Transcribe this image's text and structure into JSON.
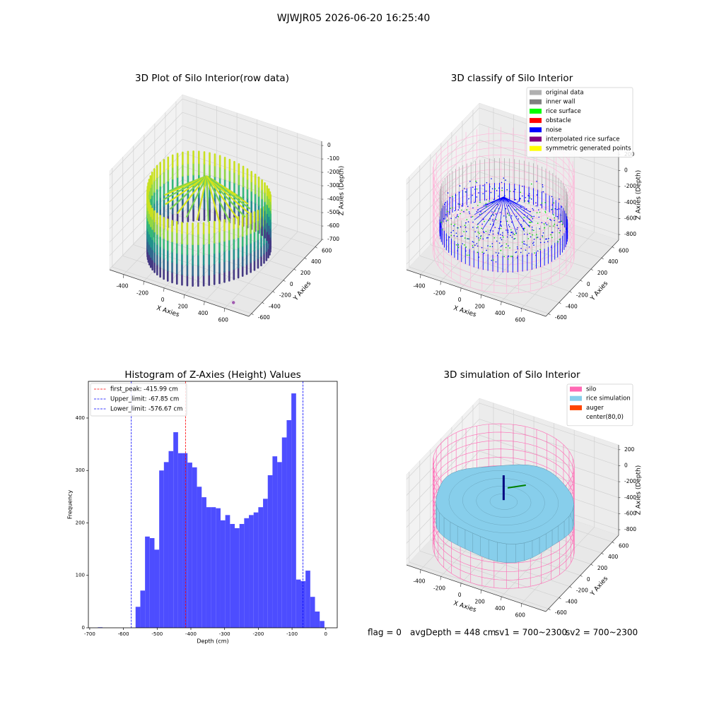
{
  "title": "WJWJR05 2026-06-20 16:25:40",
  "chart_data": [
    {
      "type": "scatter3d",
      "title": "3D Plot of Silo Interior(row data)",
      "xlabel": "X Axies",
      "ylabel": "Y Axies",
      "zlabel": "Z Axies (Depth)",
      "xlim": [
        -540,
        840
      ],
      "ylim": [
        -650,
        720
      ],
      "zlim": [
        -705,
        32
      ],
      "xticks": [
        -400,
        -200,
        0,
        200,
        400,
        600
      ],
      "yticks": [
        -600,
        -400,
        -200,
        0,
        200,
        400,
        600
      ],
      "zticks": [
        0,
        -100,
        -200,
        -300,
        -400,
        -500,
        -600,
        -700
      ]
    },
    {
      "type": "scatter3d",
      "title": "3D classify of Silo Interior",
      "xlabel": "X Axies",
      "ylabel": "Y Axies",
      "zlabel": "Z Axies (Depth)",
      "xlim": [
        -540,
        840
      ],
      "ylim": [
        -650,
        720
      ],
      "zlim": [
        -870,
        260
      ],
      "xticks": [
        -400,
        -200,
        0,
        200,
        400,
        600
      ],
      "yticks": [
        -600,
        -400,
        -200,
        0,
        200,
        400,
        600
      ],
      "zticks": [
        200,
        0,
        -200,
        -400,
        -600,
        -800
      ],
      "legend": [
        {
          "name": "original data",
          "color": "#b0b0b0"
        },
        {
          "name": "inner wall",
          "color": "#808080"
        },
        {
          "name": "rice surface",
          "color": "#00ff00"
        },
        {
          "name": "obstacle",
          "color": "#ff0000"
        },
        {
          "name": "noise",
          "color": "#0000ff"
        },
        {
          "name": "interpolated rice surface",
          "color": "#800080"
        },
        {
          "name": "symmetric generated points",
          "color": "#ffff00"
        }
      ]
    },
    {
      "type": "histogram",
      "title": "Histogram of Z-Axies (Height) Values",
      "xlabel": "Depth (cm)",
      "ylabel": "Frequency",
      "color": "#4d4dff",
      "bins": [
        -676,
        -662,
        -648,
        -634,
        -620,
        -606,
        -592,
        -578,
        -564,
        -550,
        -536,
        -522,
        -508,
        -494,
        -480,
        -466,
        -452,
        -438,
        -424,
        -410,
        -396,
        -382,
        -368,
        -354,
        -340,
        -326,
        -312,
        -298,
        -284,
        -270,
        -256,
        -242,
        -228,
        -214,
        -200,
        -186,
        -172,
        -158,
        -144,
        -130,
        -116,
        -102,
        -88,
        -74,
        -60,
        -46,
        -32,
        -18,
        -4
      ],
      "values": [
        1,
        0,
        0,
        0,
        0,
        0,
        0,
        0,
        40,
        71,
        174,
        171,
        149,
        300,
        316,
        337,
        373,
        333,
        333,
        315,
        306,
        269,
        249,
        230,
        230,
        228,
        205,
        215,
        198,
        190,
        198,
        209,
        215,
        220,
        230,
        246,
        291,
        327,
        316,
        363,
        396,
        447,
        92,
        89,
        109,
        59,
        31,
        13
      ],
      "xlim": [
        -704,
        34
      ],
      "ylim": [
        0,
        470
      ],
      "xticks": [
        -700,
        -600,
        -500,
        -400,
        -300,
        -200,
        -100,
        0
      ],
      "yticks": [
        0,
        100,
        200,
        300,
        400
      ],
      "vlines": [
        {
          "value": -415.99,
          "label": "first_peak: -415.99 cm",
          "color": "#ff0000"
        },
        {
          "value": -67.85,
          "label": "Upper_limit: -67.85 cm",
          "color": "#0000ff"
        },
        {
          "value": -576.67,
          "label": "Lower_limit: -576.67 cm",
          "color": "#0000ff"
        }
      ]
    },
    {
      "type": "surface3d",
      "title": "3D simulation of Silo Interior",
      "xlabel": "X Axies",
      "ylabel": "Y Axies",
      "zlabel": "Z Axies (Depth)",
      "xlim": [
        -540,
        840
      ],
      "ylim": [
        -650,
        720
      ],
      "zlim": [
        -870,
        260
      ],
      "xticks": [
        -400,
        -200,
        0,
        200,
        400,
        600
      ],
      "yticks": [
        -600,
        -400,
        -200,
        0,
        200,
        400,
        600
      ],
      "zticks": [
        200,
        0,
        -200,
        -400,
        -600,
        -800
      ],
      "legend": [
        {
          "name": "silo",
          "color": "#ff69b4"
        },
        {
          "name": "rice simulation",
          "color": "#87ceeb"
        },
        {
          "name": "auger",
          "color": "#ff4500"
        },
        {
          "name": "center(80,0)",
          "color": "#ffffff"
        }
      ]
    }
  ],
  "footer": [
    "flag = 0",
    "avgDepth = 448 cm",
    "sv1 = 700~2300",
    "sv2 = 700~2300"
  ]
}
